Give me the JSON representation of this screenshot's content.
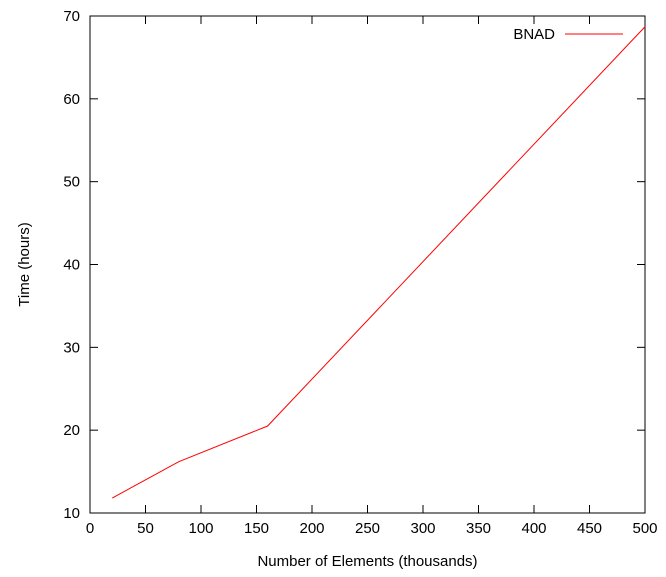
{
  "chart_data": {
    "type": "line",
    "xlabel": "Number of Elements (thousands)",
    "ylabel": "Time (hours)",
    "xlim": [
      0,
      500
    ],
    "ylim": [
      10,
      70
    ],
    "xticks": [
      0,
      50,
      100,
      150,
      200,
      250,
      300,
      350,
      400,
      450,
      500
    ],
    "yticks": [
      10,
      20,
      30,
      40,
      50,
      60,
      70
    ],
    "grid": false,
    "legend_position": "top-right",
    "series": [
      {
        "name": "BNAD",
        "color": "#ff0000",
        "x": [
          20,
          80,
          160,
          500
        ],
        "y": [
          11.8,
          16.2,
          20.5,
          68.7
        ]
      }
    ]
  }
}
